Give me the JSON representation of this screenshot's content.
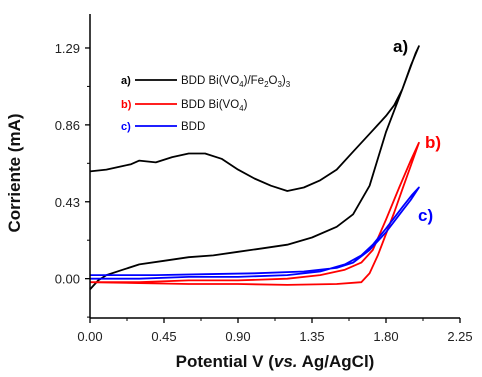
{
  "chart_data": {
    "type": "line",
    "xlabel": "Potential V (vs. Ag/AgCl)",
    "xlabel_parts": [
      "Potential V (",
      "vs.",
      " Ag/AgCl)"
    ],
    "ylabel": "Corriente (mA)",
    "xlim": [
      0.0,
      2.25
    ],
    "ylim": [
      -0.22,
      1.48
    ],
    "xticks": [
      "0.00",
      "0.45",
      "0.90",
      "1.35",
      "1.80",
      "2.25"
    ],
    "xtick_values": [
      0.0,
      0.45,
      0.9,
      1.35,
      1.8,
      2.25
    ],
    "yticks": [
      "0.00",
      "0.43",
      "0.86",
      "1.29"
    ],
    "ytick_values": [
      0.0,
      0.43,
      0.86,
      1.29
    ],
    "legend_position": "top-left",
    "series": [
      {
        "id": "a",
        "tag": "a)",
        "legend_label": "BDD Bi(VO4)/Fe2O3)3",
        "end_label": "a)",
        "color": "#000000",
        "forward": [
          [
            0.0,
            -0.06
          ],
          [
            0.05,
            -0.01
          ],
          [
            0.1,
            0.02
          ],
          [
            0.2,
            0.05
          ],
          [
            0.3,
            0.08
          ],
          [
            0.45,
            0.1
          ],
          [
            0.6,
            0.12
          ],
          [
            0.75,
            0.13
          ],
          [
            0.9,
            0.15
          ],
          [
            1.05,
            0.17
          ],
          [
            1.2,
            0.19
          ],
          [
            1.35,
            0.23
          ],
          [
            1.5,
            0.29
          ],
          [
            1.6,
            0.36
          ],
          [
            1.7,
            0.52
          ],
          [
            1.8,
            0.82
          ],
          [
            1.9,
            1.06
          ],
          [
            1.98,
            1.26
          ],
          [
            2.0,
            1.3
          ]
        ],
        "reverse": [
          [
            2.0,
            1.3
          ],
          [
            1.95,
            1.19
          ],
          [
            1.9,
            1.06
          ],
          [
            1.85,
            0.97
          ],
          [
            1.8,
            0.91
          ],
          [
            1.75,
            0.86
          ],
          [
            1.7,
            0.81
          ],
          [
            1.6,
            0.71
          ],
          [
            1.5,
            0.61
          ],
          [
            1.4,
            0.55
          ],
          [
            1.3,
            0.51
          ],
          [
            1.2,
            0.49
          ],
          [
            1.1,
            0.52
          ],
          [
            1.0,
            0.56
          ],
          [
            0.9,
            0.61
          ],
          [
            0.8,
            0.67
          ],
          [
            0.7,
            0.7
          ],
          [
            0.6,
            0.7
          ],
          [
            0.5,
            0.68
          ],
          [
            0.4,
            0.65
          ],
          [
            0.3,
            0.66
          ],
          [
            0.25,
            0.64
          ],
          [
            0.2,
            0.63
          ],
          [
            0.1,
            0.61
          ],
          [
            0.0,
            0.6
          ]
        ]
      },
      {
        "id": "b",
        "tag": "b)",
        "legend_label": "BDD Bi(VO4)",
        "end_label": "b)",
        "color": "#ff0000",
        "forward": [
          [
            0.0,
            -0.02
          ],
          [
            0.3,
            -0.02
          ],
          [
            0.6,
            -0.01
          ],
          [
            0.9,
            -0.01
          ],
          [
            1.2,
            0.0
          ],
          [
            1.4,
            0.02
          ],
          [
            1.55,
            0.05
          ],
          [
            1.65,
            0.09
          ],
          [
            1.72,
            0.16
          ],
          [
            1.8,
            0.33
          ],
          [
            1.88,
            0.51
          ],
          [
            1.95,
            0.66
          ],
          [
            2.0,
            0.76
          ]
        ],
        "reverse": [
          [
            2.0,
            0.76
          ],
          [
            1.95,
            0.63
          ],
          [
            1.9,
            0.5
          ],
          [
            1.85,
            0.37
          ],
          [
            1.8,
            0.25
          ],
          [
            1.75,
            0.13
          ],
          [
            1.7,
            0.03
          ],
          [
            1.65,
            -0.02
          ],
          [
            1.5,
            -0.03
          ],
          [
            1.2,
            -0.035
          ],
          [
            0.9,
            -0.03
          ],
          [
            0.6,
            -0.03
          ],
          [
            0.3,
            -0.025
          ],
          [
            0.0,
            -0.02
          ]
        ]
      },
      {
        "id": "c",
        "tag": "c)",
        "legend_label": "BDD",
        "end_label": "c)",
        "color": "#0000ff",
        "forward": [
          [
            0.0,
            0.0
          ],
          [
            0.3,
            0.0
          ],
          [
            0.6,
            0.01
          ],
          [
            0.9,
            0.01
          ],
          [
            1.2,
            0.02
          ],
          [
            1.4,
            0.04
          ],
          [
            1.55,
            0.08
          ],
          [
            1.65,
            0.13
          ],
          [
            1.72,
            0.19
          ],
          [
            1.8,
            0.28
          ],
          [
            1.9,
            0.4
          ],
          [
            1.96,
            0.47
          ],
          [
            2.0,
            0.51
          ]
        ],
        "reverse": [
          [
            2.0,
            0.51
          ],
          [
            1.95,
            0.44
          ],
          [
            1.9,
            0.38
          ],
          [
            1.85,
            0.32
          ],
          [
            1.8,
            0.26
          ],
          [
            1.7,
            0.16
          ],
          [
            1.6,
            0.09
          ],
          [
            1.5,
            0.06
          ],
          [
            1.3,
            0.04
          ],
          [
            1.0,
            0.03
          ],
          [
            0.7,
            0.025
          ],
          [
            0.4,
            0.02
          ],
          [
            0.1,
            0.02
          ],
          [
            0.0,
            0.02
          ]
        ]
      }
    ]
  }
}
